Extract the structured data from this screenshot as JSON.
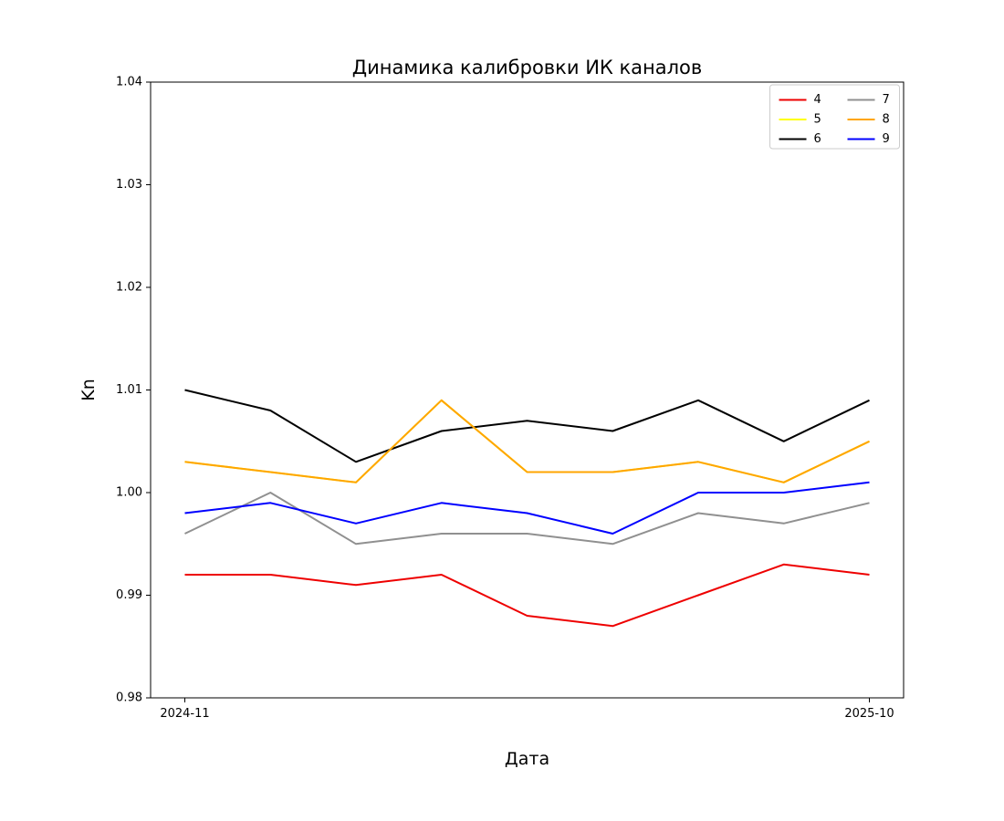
{
  "chart_data": {
    "type": "line",
    "title": "Динамика калибровки ИК каналов",
    "xlabel": "Дата",
    "ylabel": "Kn",
    "ylim": [
      0.98,
      1.04
    ],
    "y_ticks": [
      0.98,
      0.99,
      1.0,
      1.01,
      1.02,
      1.03,
      1.04
    ],
    "x_point_count": 9,
    "x_ticks": [
      {
        "index": 0,
        "label": "2024-11"
      },
      {
        "index": 8,
        "label": "2025-10"
      }
    ],
    "grid": false,
    "legend": {
      "position": "upper right",
      "columns": 2,
      "column_major": true
    },
    "note": "Series 5 (yellow) coincides with series 8 (orange) and is hidden beneath it in the rendered image.",
    "series": [
      {
        "name": "4",
        "color": "#ee0000",
        "values": [
          0.992,
          0.992,
          0.991,
          0.992,
          0.988,
          0.987,
          0.99,
          0.993,
          0.992
        ]
      },
      {
        "name": "5",
        "color": "#ffff00",
        "values": [
          1.003,
          1.002,
          1.001,
          1.009,
          1.002,
          1.002,
          1.003,
          1.001,
          1.005
        ]
      },
      {
        "name": "6",
        "color": "#000000",
        "values": [
          1.01,
          1.008,
          1.003,
          1.006,
          1.007,
          1.006,
          1.009,
          1.005,
          1.009
        ]
      },
      {
        "name": "7",
        "color": "#909090",
        "values": [
          0.996,
          1.0,
          0.995,
          0.996,
          0.996,
          0.995,
          0.998,
          0.997,
          0.999
        ]
      },
      {
        "name": "8",
        "color": "#ffa500",
        "values": [
          1.003,
          1.002,
          1.001,
          1.009,
          1.002,
          1.002,
          1.003,
          1.001,
          1.005
        ]
      },
      {
        "name": "9",
        "color": "#0000ff",
        "values": [
          0.998,
          0.999,
          0.997,
          0.999,
          0.998,
          0.996,
          1.0,
          1.0,
          1.001
        ]
      }
    ],
    "axis_color": "#000000",
    "legend_border_color": "#cccccc",
    "background_color": "#ffffff"
  }
}
